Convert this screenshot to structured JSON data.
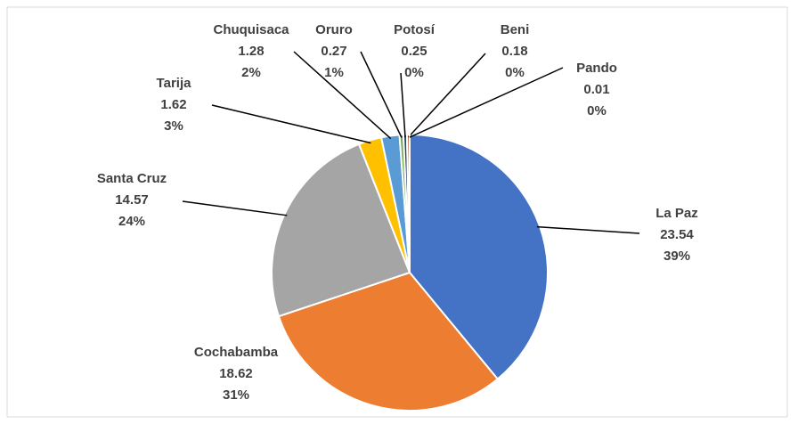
{
  "chart_data": {
    "type": "pie",
    "categories": [
      "La Paz",
      "Cochabamba",
      "Santa Cruz",
      "Tarija",
      "Chuquisaca",
      "Oruro",
      "Potosí",
      "Beni",
      "Pando"
    ],
    "values": [
      23.54,
      18.62,
      14.57,
      1.62,
      1.28,
      0.27,
      0.25,
      0.18,
      0.01
    ],
    "percent_labels": [
      "39%",
      "31%",
      "24%",
      "3%",
      "2%",
      "1%",
      "0%",
      "0%",
      "0%"
    ],
    "colors": [
      "#4472c4",
      "#ed7d31",
      "#a5a5a5",
      "#ffc000",
      "#5b9bd5",
      "#70ad47",
      "#264478",
      "#9e480e",
      "#636363"
    ]
  }
}
